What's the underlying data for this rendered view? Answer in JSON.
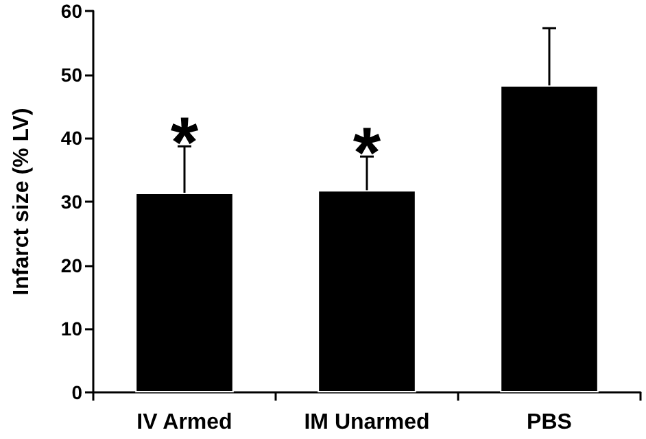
{
  "chart_data": {
    "type": "bar",
    "ylabel": "Infarct size (% LV)",
    "categories": [
      "IV Armed",
      "IM Unarmed",
      "PBS"
    ],
    "values": [
      31.4,
      31.8,
      48.3
    ],
    "errors": [
      [
        31.4,
        38.7
      ],
      [
        31.8,
        37.1
      ],
      [
        48.3,
        57.3
      ]
    ],
    "color": "#000000",
    "ylim": [
      0,
      60
    ],
    "yticks": [
      0,
      10,
      20,
      30,
      40,
      50,
      60
    ],
    "grid": false,
    "annotations": [
      "*",
      "*"
    ]
  }
}
